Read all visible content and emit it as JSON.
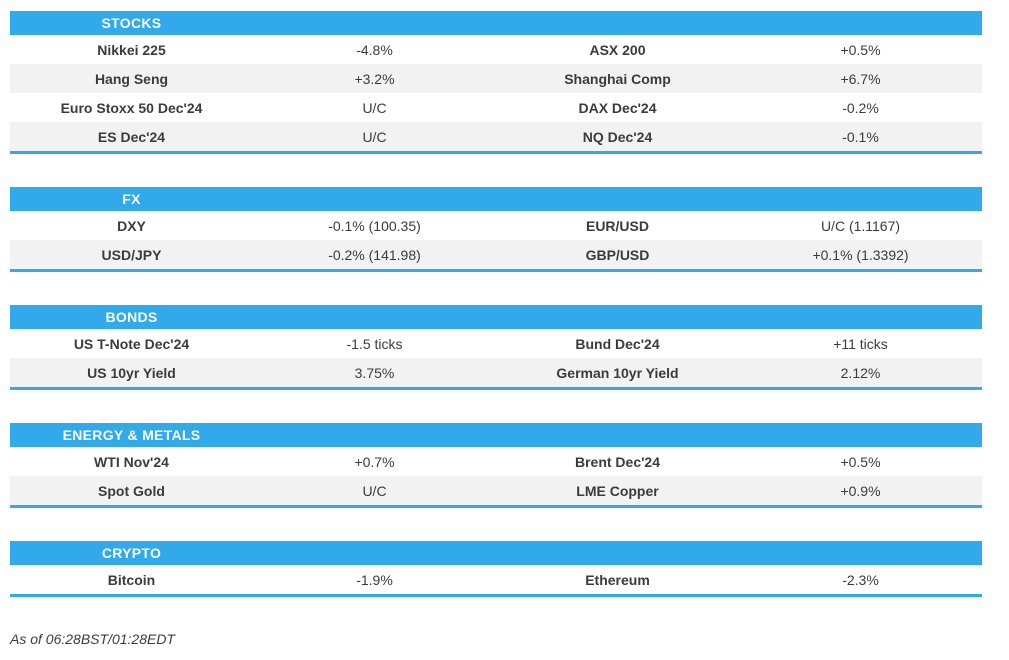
{
  "colors": {
    "accent_blue": "#31a9ea",
    "row_alt_gray": "#f2f2f2",
    "text_dark": "#3b3b3b",
    "header_text": "#ffffff"
  },
  "footer": {
    "as_of": "As of 06:28BST/01:28EDT"
  },
  "sections": [
    {
      "title": "STOCKS",
      "rows": [
        {
          "cells": [
            "Nikkei 225",
            "-4.8%",
            "ASX 200",
            "+0.5%"
          ]
        },
        {
          "cells": [
            "Hang Seng",
            "+3.2%",
            "Shanghai Comp",
            "+6.7%"
          ]
        },
        {
          "cells": [
            "Euro Stoxx 50 Dec'24",
            "U/C",
            "DAX Dec'24",
            "-0.2%"
          ]
        },
        {
          "cells": [
            "ES Dec'24",
            "U/C",
            "NQ Dec'24",
            "-0.1%"
          ]
        }
      ]
    },
    {
      "title": "FX",
      "rows": [
        {
          "cells": [
            "DXY",
            "-0.1% (100.35)",
            "EUR/USD",
            "U/C (1.1167)"
          ]
        },
        {
          "cells": [
            "USD/JPY",
            "-0.2% (141.98)",
            "GBP/USD",
            "+0.1% (1.3392)"
          ]
        }
      ]
    },
    {
      "title": "BONDS",
      "rows": [
        {
          "cells": [
            "US T-Note Dec'24",
            "-1.5 ticks",
            "Bund Dec'24",
            "+11 ticks"
          ]
        },
        {
          "cells": [
            "US 10yr Yield",
            "3.75%",
            "German 10yr Yield",
            "2.12%"
          ]
        }
      ]
    },
    {
      "title": "ENERGY & METALS",
      "rows": [
        {
          "cells": [
            "WTI Nov'24",
            "+0.7%",
            "Brent Dec'24",
            "+0.5%"
          ]
        },
        {
          "cells": [
            "Spot Gold",
            "U/C",
            "LME Copper",
            "+0.9%"
          ]
        }
      ]
    },
    {
      "title": "CRYPTO",
      "rows": [
        {
          "cells": [
            "Bitcoin",
            "-1.9%",
            "Ethereum",
            "-2.3%"
          ]
        }
      ]
    }
  ]
}
